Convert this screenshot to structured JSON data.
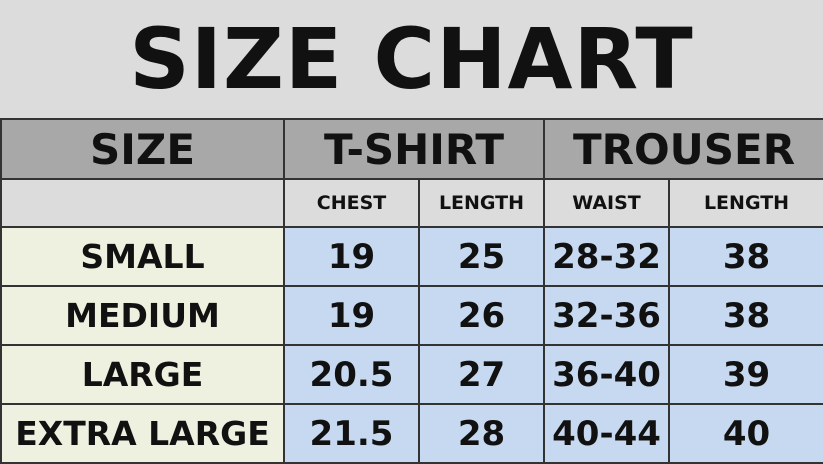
{
  "title": "SIZE CHART",
  "headers": {
    "size": "SIZE",
    "tshirt": "T-SHIRT",
    "trouser": "TROUSER"
  },
  "subheaders": [
    "CHEST",
    "LENGTH",
    "WAIST",
    "LENGTH"
  ],
  "rows": [
    {
      "size": "SMALL",
      "chest": "19",
      "tlength": "25",
      "waist": "28-32",
      "rlength": "38"
    },
    {
      "size": "MEDIUM",
      "chest": "19",
      "tlength": "26",
      "waist": "32-36",
      "rlength": "38"
    },
    {
      "size": "LARGE",
      "chest": "20.5",
      "tlength": "27",
      "waist": "36-40",
      "rlength": "39"
    },
    {
      "size": "EXTRA LARGE",
      "chest": "21.5",
      "tlength": "28",
      "waist": "40-44",
      "rlength": "40"
    }
  ],
  "colors": {
    "header": "#a8a8a8",
    "subheader": "#dcdcdc",
    "size_cell": "#eef1e0",
    "value_cell": "#c6d9f0"
  }
}
